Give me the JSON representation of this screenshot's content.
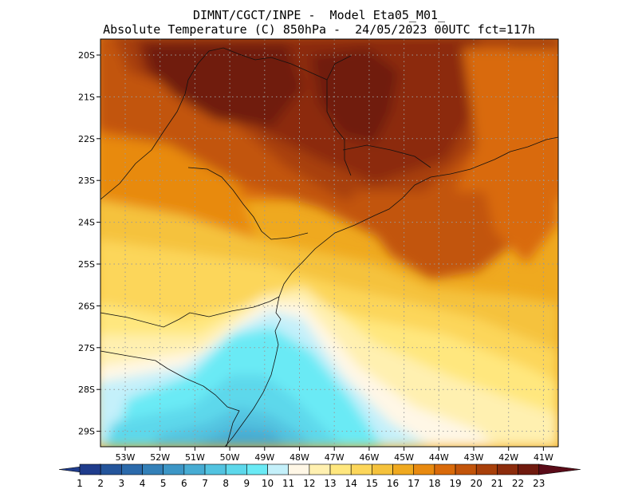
{
  "title": {
    "line1": "DIMNT/CGCT/INPE -  Model Eta05_M01_",
    "line2": "Absolute Temperature (C) 850hPa -  24/05/2023 00UTC fct=117h"
  },
  "map": {
    "lon_ticks": [
      "53W",
      "52W",
      "51W",
      "50W",
      "49W",
      "48W",
      "47W",
      "46W",
      "45W",
      "44W",
      "43W",
      "42W",
      "41W"
    ],
    "lat_ticks": [
      "20S",
      "21S",
      "22S",
      "23S",
      "24S",
      "25S",
      "26S",
      "27S",
      "28S",
      "29S"
    ]
  },
  "colorbar": {
    "labels": [
      "1",
      "2",
      "3",
      "4",
      "5",
      "6",
      "7",
      "8",
      "9",
      "10",
      "11",
      "12",
      "13",
      "14",
      "15",
      "16",
      "17",
      "18",
      "19",
      "20",
      "21",
      "22",
      "23"
    ],
    "colors": [
      "#1f3c8c",
      "#24559b",
      "#2b6aab",
      "#3380b8",
      "#3c96c6",
      "#47acd3",
      "#52c3e0",
      "#5dd8eb",
      "#6aeaf5",
      "#c4f0fa",
      "#fff7e6",
      "#fff0b0",
      "#ffe77e",
      "#fcd65a",
      "#f5c23c",
      "#efa91f",
      "#e88a10",
      "#d96a0a",
      "#c2540a",
      "#a8400a",
      "#8c2c0c",
      "#701a0e",
      "#5a0b18"
    ]
  }
}
